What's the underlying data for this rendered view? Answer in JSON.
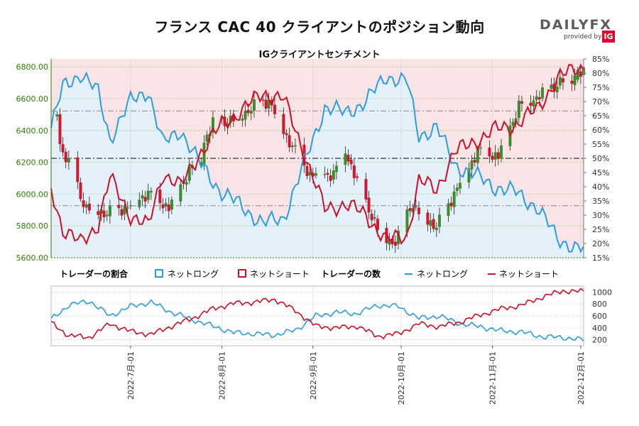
{
  "header": {
    "title": "フランス CAC 40 クライアントのポジション動向",
    "subtitle": "IGクライアントセンチメント",
    "logo_word": "DAILYFX",
    "logo_by": "provided by",
    "logo_ig": "IG"
  },
  "legend": {
    "ratio_title": "トレーダーの割合",
    "count_title": "トレーダーの数",
    "net_long": "ネットロング",
    "net_short": "ネットショート"
  },
  "colors": {
    "long": "#2b9de0",
    "short": "#cc1126",
    "up_candle": "#3f8a2c",
    "down_candle": "#d0182e",
    "long_fill": "#e4f1fa",
    "short_fill": "#fbe4e6",
    "price_axis": "#2e7d00"
  },
  "chart_data": [
    {
      "type": "candlestick",
      "title": "IGクライアントセンチメント",
      "x_ticks": [
        "2022-7月-01",
        "2022-8月-01",
        "2022-9月-01",
        "2022-10月-01",
        "2022-11月-01",
        "2022-12月-01"
      ],
      "x_range": [
        "2022-06-04",
        "2022-12-02"
      ],
      "y_left": {
        "ylim": [
          5600,
          6850
        ],
        "ticks": [
          "5600.00",
          "5800.00",
          "6000.00",
          "6200.00",
          "6400.00",
          "6600.00",
          "6800.00"
        ]
      },
      "y_right": {
        "ylim": [
          15,
          85
        ],
        "ticks": [
          "15%",
          "20%",
          "25%",
          "30%",
          "35%",
          "40%",
          "45%",
          "50%",
          "55%",
          "60%",
          "65%",
          "70%",
          "75%",
          "80%",
          "85%"
        ]
      },
      "reference_lines_pct": [
        50,
        66.7,
        33.3
      ],
      "price_anchors": [
        {
          "date": "2022-06-03",
          "close": 6485
        },
        {
          "date": "2022-06-10",
          "close": 6188
        },
        {
          "date": "2022-06-16",
          "close": 5920
        },
        {
          "date": "2022-06-23",
          "close": 5880
        },
        {
          "date": "2022-06-30",
          "close": 5922
        },
        {
          "date": "2022-07-07",
          "close": 6010
        },
        {
          "date": "2022-07-14",
          "close": 5918
        },
        {
          "date": "2022-07-22",
          "close": 6180
        },
        {
          "date": "2022-07-29",
          "close": 6448
        },
        {
          "date": "2022-08-05",
          "close": 6472
        },
        {
          "date": "2022-08-12",
          "close": 6553
        },
        {
          "date": "2022-08-17",
          "close": 6592
        },
        {
          "date": "2022-08-23",
          "close": 6362
        },
        {
          "date": "2022-08-31",
          "close": 6125
        },
        {
          "date": "2022-09-08",
          "close": 6126
        },
        {
          "date": "2022-09-12",
          "close": 6280
        },
        {
          "date": "2022-09-16",
          "close": 6077
        },
        {
          "date": "2022-09-23",
          "close": 5783
        },
        {
          "date": "2022-09-29",
          "close": 5676
        },
        {
          "date": "2022-10-04",
          "close": 5936
        },
        {
          "date": "2022-10-10",
          "close": 5840
        },
        {
          "date": "2022-10-13",
          "close": 5794
        },
        {
          "date": "2022-10-20",
          "close": 6041
        },
        {
          "date": "2022-10-27",
          "close": 6272
        },
        {
          "date": "2022-11-03",
          "close": 6243
        },
        {
          "date": "2022-11-10",
          "close": 6557
        },
        {
          "date": "2022-11-16",
          "close": 6609
        },
        {
          "date": "2022-11-24",
          "close": 6707
        },
        {
          "date": "2022-12-01",
          "close": 6753
        }
      ],
      "net_long_pct_anchors": [
        {
          "date": "2022-06-03",
          "pct": 57
        },
        {
          "date": "2022-06-08",
          "pct": 75
        },
        {
          "date": "2022-06-14",
          "pct": 80
        },
        {
          "date": "2022-06-20",
          "pct": 73
        },
        {
          "date": "2022-06-24",
          "pct": 57
        },
        {
          "date": "2022-07-01",
          "pct": 70
        },
        {
          "date": "2022-07-07",
          "pct": 74
        },
        {
          "date": "2022-07-12",
          "pct": 55
        },
        {
          "date": "2022-07-18",
          "pct": 60
        },
        {
          "date": "2022-07-24",
          "pct": 49
        },
        {
          "date": "2022-08-01",
          "pct": 38
        },
        {
          "date": "2022-08-08",
          "pct": 33
        },
        {
          "date": "2022-08-15",
          "pct": 27
        },
        {
          "date": "2022-08-22",
          "pct": 29
        },
        {
          "date": "2022-08-29",
          "pct": 48
        },
        {
          "date": "2022-09-05",
          "pct": 68
        },
        {
          "date": "2022-09-12",
          "pct": 66
        },
        {
          "date": "2022-09-19",
          "pct": 70
        },
        {
          "date": "2022-09-26",
          "pct": 79
        },
        {
          "date": "2022-10-03",
          "pct": 77
        },
        {
          "date": "2022-10-07",
          "pct": 58
        },
        {
          "date": "2022-10-13",
          "pct": 61
        },
        {
          "date": "2022-10-19",
          "pct": 48
        },
        {
          "date": "2022-10-26",
          "pct": 44
        },
        {
          "date": "2022-11-02",
          "pct": 40
        },
        {
          "date": "2022-11-09",
          "pct": 38
        },
        {
          "date": "2022-11-16",
          "pct": 33
        },
        {
          "date": "2022-11-23",
          "pct": 22
        },
        {
          "date": "2022-11-30",
          "pct": 18
        }
      ],
      "candles": [
        {
          "date": "2022-06-06",
          "o": 6490,
          "h": 6520,
          "l": 6460,
          "c": 6500
        },
        {
          "date": "2022-06-15",
          "o": 5960,
          "h": 6010,
          "l": 5880,
          "c": 5920
        },
        {
          "date": "2022-07-25",
          "o": 6180,
          "h": 6230,
          "l": 6160,
          "c": 6200
        },
        {
          "date": "2022-09-29",
          "o": 5700,
          "h": 5740,
          "l": 5630,
          "c": 5676
        },
        {
          "date": "2022-11-30",
          "o": 6720,
          "h": 6800,
          "l": 6700,
          "c": 6780
        }
      ]
    },
    {
      "type": "line",
      "title": "トレーダーの数",
      "y_ticks": [
        200,
        400,
        600,
        800,
        1000
      ],
      "ylim": [
        100,
        1100
      ],
      "series": [
        {
          "name": "ネットロング",
          "points": [
            {
              "date": "2022-06-03",
              "v": 500
            },
            {
              "date": "2022-06-10",
              "v": 780
            },
            {
              "date": "2022-06-17",
              "v": 850
            },
            {
              "date": "2022-06-24",
              "v": 600
            },
            {
              "date": "2022-07-01",
              "v": 760
            },
            {
              "date": "2022-07-08",
              "v": 830
            },
            {
              "date": "2022-07-15",
              "v": 660
            },
            {
              "date": "2022-07-22",
              "v": 540
            },
            {
              "date": "2022-07-29",
              "v": 430
            },
            {
              "date": "2022-08-05",
              "v": 320
            },
            {
              "date": "2022-08-12",
              "v": 300
            },
            {
              "date": "2022-08-19",
              "v": 280
            },
            {
              "date": "2022-08-26",
              "v": 360
            },
            {
              "date": "2022-09-02",
              "v": 600
            },
            {
              "date": "2022-09-09",
              "v": 660
            },
            {
              "date": "2022-09-16",
              "v": 640
            },
            {
              "date": "2022-09-23",
              "v": 780
            },
            {
              "date": "2022-09-30",
              "v": 760
            },
            {
              "date": "2022-10-07",
              "v": 560
            },
            {
              "date": "2022-10-14",
              "v": 600
            },
            {
              "date": "2022-10-21",
              "v": 470
            },
            {
              "date": "2022-10-28",
              "v": 420
            },
            {
              "date": "2022-11-04",
              "v": 350
            },
            {
              "date": "2022-11-11",
              "v": 330
            },
            {
              "date": "2022-11-18",
              "v": 250
            },
            {
              "date": "2022-11-25",
              "v": 240
            },
            {
              "date": "2022-12-01",
              "v": 200
            }
          ]
        },
        {
          "name": "ネットショート",
          "points": [
            {
              "date": "2022-06-03",
              "v": 520
            },
            {
              "date": "2022-06-10",
              "v": 270
            },
            {
              "date": "2022-06-17",
              "v": 240
            },
            {
              "date": "2022-06-24",
              "v": 470
            },
            {
              "date": "2022-07-01",
              "v": 340
            },
            {
              "date": "2022-07-08",
              "v": 290
            },
            {
              "date": "2022-07-15",
              "v": 430
            },
            {
              "date": "2022-07-22",
              "v": 560
            },
            {
              "date": "2022-07-29",
              "v": 720
            },
            {
              "date": "2022-08-05",
              "v": 810
            },
            {
              "date": "2022-08-12",
              "v": 830
            },
            {
              "date": "2022-08-19",
              "v": 880
            },
            {
              "date": "2022-08-26",
              "v": 690
            },
            {
              "date": "2022-09-02",
              "v": 430
            },
            {
              "date": "2022-09-09",
              "v": 400
            },
            {
              "date": "2022-09-16",
              "v": 430
            },
            {
              "date": "2022-09-23",
              "v": 260
            },
            {
              "date": "2022-09-30",
              "v": 300
            },
            {
              "date": "2022-10-07",
              "v": 470
            },
            {
              "date": "2022-10-14",
              "v": 420
            },
            {
              "date": "2022-10-21",
              "v": 500
            },
            {
              "date": "2022-10-28",
              "v": 620
            },
            {
              "date": "2022-11-04",
              "v": 720
            },
            {
              "date": "2022-11-11",
              "v": 780
            },
            {
              "date": "2022-11-18",
              "v": 920
            },
            {
              "date": "2022-11-25",
              "v": 1020
            },
            {
              "date": "2022-12-01",
              "v": 1010
            }
          ]
        }
      ]
    }
  ]
}
